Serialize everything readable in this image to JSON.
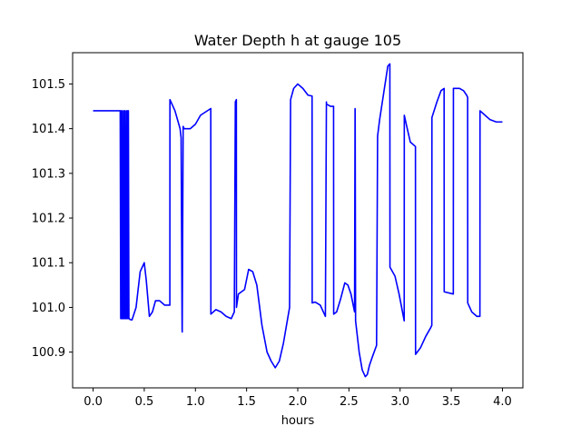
{
  "chart_data": {
    "type": "line",
    "title": "Water Depth h at gauge 105",
    "xlabel": "hours",
    "ylabel": "",
    "xlim": [
      -0.2,
      4.2
    ],
    "ylim": [
      100.82,
      101.57
    ],
    "xticks": [
      0.0,
      0.5,
      1.0,
      1.5,
      2.0,
      2.5,
      3.0,
      3.5,
      4.0
    ],
    "xtick_labels": [
      "0.0",
      "0.5",
      "1.0",
      "1.5",
      "2.0",
      "2.5",
      "3.0",
      "3.5",
      "4.0"
    ],
    "yticks": [
      100.9,
      101.0,
      101.1,
      101.2,
      101.3,
      101.4,
      101.5
    ],
    "ytick_labels": [
      "100.9",
      "101.0",
      "101.1",
      "101.2",
      "101.3",
      "101.4",
      "101.5"
    ],
    "grid": false,
    "series": [
      {
        "color": "#0000ff",
        "x": [
          0.0,
          0.26,
          0.265,
          0.27,
          0.275,
          0.28,
          0.285,
          0.29,
          0.295,
          0.3,
          0.305,
          0.31,
          0.315,
          0.32,
          0.325,
          0.33,
          0.335,
          0.34,
          0.345,
          0.35,
          0.355,
          0.36,
          0.38,
          0.42,
          0.46,
          0.5,
          0.52,
          0.55,
          0.58,
          0.61,
          0.65,
          0.7,
          0.75,
          0.751,
          0.8,
          0.85,
          0.86,
          0.87,
          0.871,
          0.88,
          0.89,
          0.95,
          1.0,
          1.05,
          1.15,
          1.151,
          1.2,
          1.25,
          1.3,
          1.35,
          1.38,
          1.39,
          1.4,
          1.401,
          1.42,
          1.45,
          1.48,
          1.52,
          1.56,
          1.6,
          1.65,
          1.7,
          1.74,
          1.78,
          1.82,
          1.86,
          1.92,
          1.93,
          1.96,
          2.0,
          2.05,
          2.1,
          2.14,
          2.141,
          2.17,
          2.22,
          2.27,
          2.28,
          2.281,
          2.32,
          2.35,
          2.351,
          2.38,
          2.42,
          2.46,
          2.49,
          2.52,
          2.555,
          2.56,
          2.561,
          2.565,
          2.57,
          2.6,
          2.63,
          2.66,
          2.68,
          2.7,
          2.73,
          2.77,
          2.78,
          2.781,
          2.8,
          2.84,
          2.88,
          2.9,
          2.901,
          2.95,
          2.99,
          3.04,
          3.041,
          3.06,
          3.1,
          3.15,
          3.151,
          3.2,
          3.25,
          3.3,
          3.31,
          3.311,
          3.36,
          3.4,
          3.43,
          3.431,
          3.52,
          3.521,
          3.58,
          3.62,
          3.65,
          3.66,
          3.661,
          3.7,
          3.75,
          3.78,
          3.781,
          3.83,
          3.88,
          3.94,
          4.0
        ],
        "values": [
          101.44,
          101.44,
          101.44,
          100.975,
          101.44,
          100.975,
          101.44,
          100.975,
          100.975,
          101.44,
          100.975,
          101.44,
          100.975,
          100.975,
          101.44,
          100.975,
          101.44,
          100.975,
          101.44,
          100.975,
          100.975,
          100.973,
          100.972,
          101.0,
          101.08,
          101.1,
          101.06,
          100.98,
          100.99,
          101.015,
          101.015,
          101.005,
          101.005,
          101.465,
          101.44,
          101.4,
          101.38,
          100.95,
          100.945,
          101.405,
          101.4,
          101.4,
          101.41,
          101.43,
          101.445,
          100.985,
          100.995,
          100.99,
          100.98,
          100.975,
          100.99,
          101.46,
          101.465,
          101.0,
          101.03,
          101.035,
          101.04,
          101.085,
          101.08,
          101.05,
          100.96,
          100.9,
          100.88,
          100.865,
          100.88,
          100.92,
          101.0,
          101.465,
          101.49,
          101.5,
          101.49,
          101.475,
          101.473,
          101.01,
          101.012,
          101.005,
          100.98,
          101.46,
          101.455,
          101.45,
          101.45,
          100.985,
          100.99,
          101.02,
          101.055,
          101.05,
          101.03,
          100.99,
          101.445,
          101.44,
          100.97,
          100.96,
          100.9,
          100.86,
          100.845,
          100.85,
          100.87,
          100.89,
          100.915,
          101.38,
          101.385,
          101.42,
          101.48,
          101.54,
          101.545,
          101.09,
          101.07,
          101.03,
          100.97,
          101.43,
          101.41,
          101.37,
          101.36,
          100.895,
          100.91,
          100.935,
          100.955,
          100.96,
          101.425,
          101.46,
          101.485,
          101.49,
          101.035,
          101.03,
          101.49,
          101.49,
          101.485,
          101.475,
          101.47,
          101.01,
          100.99,
          100.98,
          100.98,
          101.44,
          101.43,
          101.42,
          101.415,
          101.415
        ]
      }
    ]
  }
}
